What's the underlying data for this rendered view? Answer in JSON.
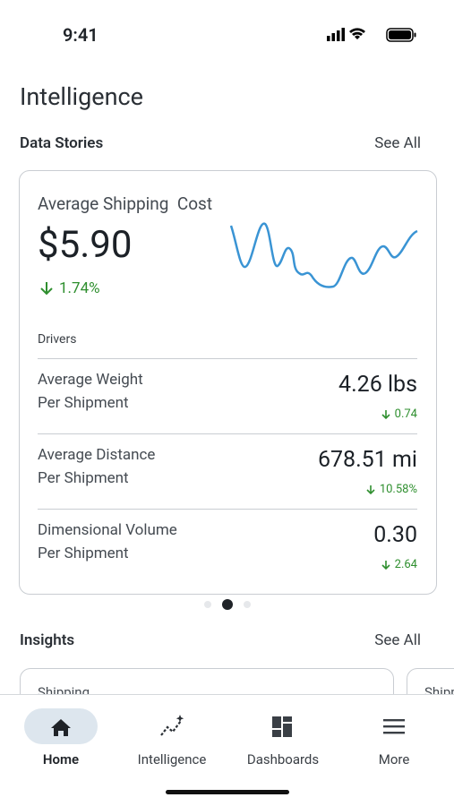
{
  "status_bar": {
    "time": "9:41"
  },
  "header": {
    "title": "Intelligence"
  },
  "data_stories": {
    "title": "Data Stories",
    "link": "See All",
    "card": {
      "title": "Average Shipping  Cost",
      "value": "$5.90",
      "change": "1.74%",
      "drivers_label": "Drivers",
      "drivers": [
        {
          "label": [
            "Average Weight",
            "Per Shipment"
          ],
          "value": "4.26 lbs",
          "change": "0.74"
        },
        {
          "label": [
            "Average Distance",
            "Per Shipment"
          ],
          "value": "678.51 mi",
          "change": "10.58%"
        },
        {
          "label": [
            "Dimensional Volume",
            "Per Shipment"
          ],
          "value": "0.30",
          "change": "2.64"
        }
      ]
    }
  },
  "insights": {
    "title": "Insights",
    "link": "See All",
    "cards": [
      "Shipping",
      "Shipping"
    ]
  },
  "nav": {
    "items": [
      "Home",
      "Intelligence",
      "Dashboards",
      "More"
    ]
  }
}
